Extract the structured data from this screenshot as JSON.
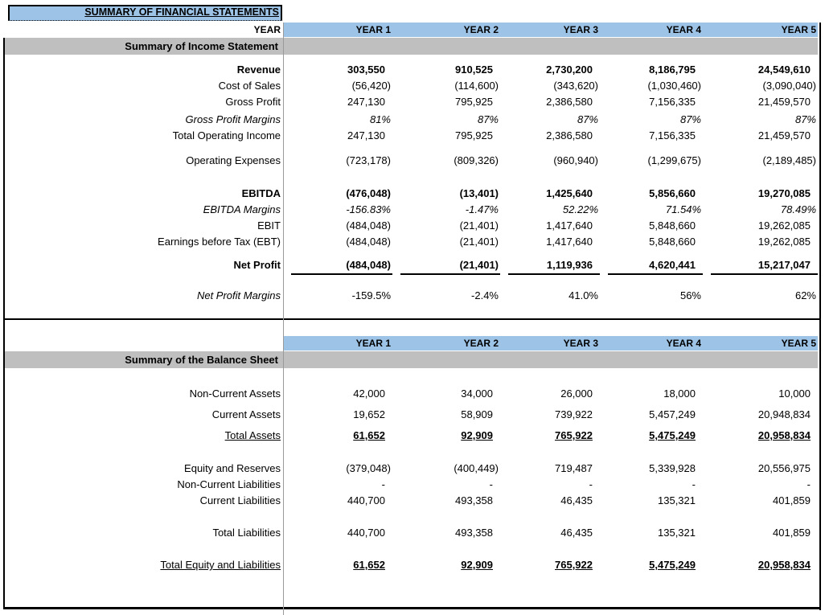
{
  "title": "SUMMARY OF FINANCIAL STATEMENTS",
  "colors": {
    "header_blue": "#9DC3E6",
    "band_gray": "#BFBFBF"
  },
  "year_header": {
    "label": "YEAR",
    "columns": [
      "YEAR 1",
      "YEAR 2",
      "YEAR 3",
      "YEAR 4",
      "YEAR 5"
    ]
  },
  "income_statement": {
    "section_title": "Summary of Income Statement",
    "rows": [
      {
        "label": "Revenue",
        "style": "bold",
        "gap_before": 8,
        "values": [
          "303,550",
          "910,525",
          "2,730,200",
          "8,186,795",
          "24,549,610"
        ]
      },
      {
        "label": "Cost of Sales",
        "values": [
          "(56,420)",
          "(114,600)",
          "(343,620)",
          "(1,030,460)",
          "(3,090,040)"
        ]
      },
      {
        "label": "Gross Profit",
        "values": [
          "247,130",
          "795,925",
          "2,386,580",
          "7,156,335",
          "21,459,570"
        ]
      },
      {
        "label": "Gross Profit Margins",
        "style": "italic",
        "gap_before": 2,
        "values": [
          "81%",
          "87%",
          "87%",
          "87%",
          "87%"
        ]
      },
      {
        "label": "Total Operating Income",
        "values": [
          "247,130",
          "795,925",
          "2,386,580",
          "7,156,335",
          "21,459,570"
        ]
      },
      {
        "label": "Operating Expenses",
        "gap_before": 11,
        "values": [
          "(723,178)",
          "(809,326)",
          "(960,940)",
          "(1,299,675)",
          "(2,189,485)"
        ]
      },
      {
        "label": "EBITDA",
        "style": "bold",
        "gap_before": 21,
        "values": [
          "(476,048)",
          "(13,401)",
          "1,425,640",
          "5,856,660",
          "19,270,085"
        ]
      },
      {
        "label": "EBITDA Margins",
        "style": "italic",
        "values": [
          "-156.83%",
          "-1.47%",
          "52.22%",
          "71.54%",
          "78.49%"
        ]
      },
      {
        "label": "EBIT",
        "values": [
          "(484,048)",
          "(21,401)",
          "1,417,640",
          "5,848,660",
          "19,262,085"
        ]
      },
      {
        "label": "Earnings before Tax (EBT)",
        "values": [
          "(484,048)",
          "(21,401)",
          "1,417,640",
          "5,848,660",
          "19,262,085"
        ]
      },
      {
        "label": "Net Profit",
        "style": "net",
        "gap_before": 9,
        "values": [
          "(484,048)",
          "(21,401)",
          "1,119,936",
          "4,620,441",
          "15,217,047"
        ]
      },
      {
        "label": "Net Profit Margins",
        "style": "italic-label",
        "gap_before": 18,
        "values": [
          "-159.5%",
          "-2.4%",
          "41.0%",
          "56%",
          "62%"
        ]
      }
    ]
  },
  "balance_sheet": {
    "section_title": "Summary of the Balance Sheet",
    "rows": [
      {
        "label": "Non-Current Assets",
        "gap_before": 1,
        "gap_after": 6,
        "values": [
          "42,000",
          "34,000",
          "26,000",
          "18,000",
          "10,000"
        ]
      },
      {
        "label": "Current Assets",
        "gap_after": 6,
        "values": [
          "19,652",
          "58,909",
          "739,922",
          "5,457,249",
          "20,948,834"
        ]
      },
      {
        "label": "Total Assets",
        "style": "total",
        "values": [
          "61,652",
          "92,909",
          "765,922",
          "5,475,249",
          "20,958,834"
        ]
      },
      {
        "label": "Equity and Reserves",
        "gap_before": 21,
        "values": [
          "(379,048)",
          "(400,449)",
          "719,487",
          "5,339,928",
          "20,556,975"
        ]
      },
      {
        "label": "Non-Current Liabilities",
        "values": [
          "-",
          "-",
          "-",
          "-",
          "-"
        ]
      },
      {
        "label": "Current Liabilities",
        "values": [
          "440,700",
          "493,358",
          "46,435",
          "135,321",
          "401,859"
        ]
      },
      {
        "label": "Total Liabilities",
        "gap_before": 20,
        "values": [
          "440,700",
          "493,358",
          "46,435",
          "135,321",
          "401,859"
        ]
      },
      {
        "label": "Total Equity and Liabilities",
        "style": "total",
        "gap_before": 20,
        "values": [
          "61,652",
          "92,909",
          "765,922",
          "5,475,249",
          "20,958,834"
        ]
      }
    ]
  }
}
